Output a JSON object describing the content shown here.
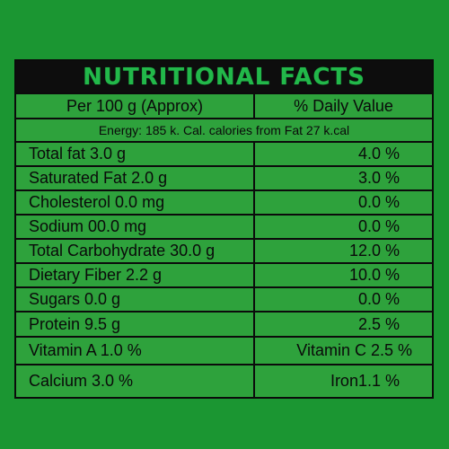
{
  "title": "NUTRITIONAL FACTS",
  "header": {
    "left": "Per 100 g (Approx)",
    "right": "% Daily Value"
  },
  "energy": "Energy: 185 k. Cal. calories from Fat 27 k.cal",
  "rows": [
    {
      "left": "Total fat 3.0 g",
      "right": "4.0 %"
    },
    {
      "left": "Saturated Fat 2.0 g",
      "right": "3.0 %"
    },
    {
      "left": "Cholesterol 0.0 mg",
      "right": "0.0 %"
    },
    {
      "left": "Sodium 00.0 mg",
      "right": "0.0 %"
    },
    {
      "left": "Total Carbohydrate 30.0 g",
      "right": "12.0 %"
    },
    {
      "left": "Dietary Fiber 2.2 g",
      "right": "10.0 %"
    },
    {
      "left": "Sugars 0.0 g",
      "right": "0.0 %"
    },
    {
      "left": "Protein 9.5 g",
      "right": "2.5 %"
    }
  ],
  "vitamins": {
    "left": "Vitamin A 1.0 %",
    "right": "Vitamin C 2.5 %"
  },
  "minerals": {
    "left": "Calcium 3.0 %",
    "right_label": "Iron",
    "right_value": "1.1 %"
  },
  "colors": {
    "background": "#1b9632",
    "panel": "#2ea23c",
    "title_bar": "#0d0d0d",
    "title_text": "#22b84a",
    "border": "#0b0b0b"
  }
}
